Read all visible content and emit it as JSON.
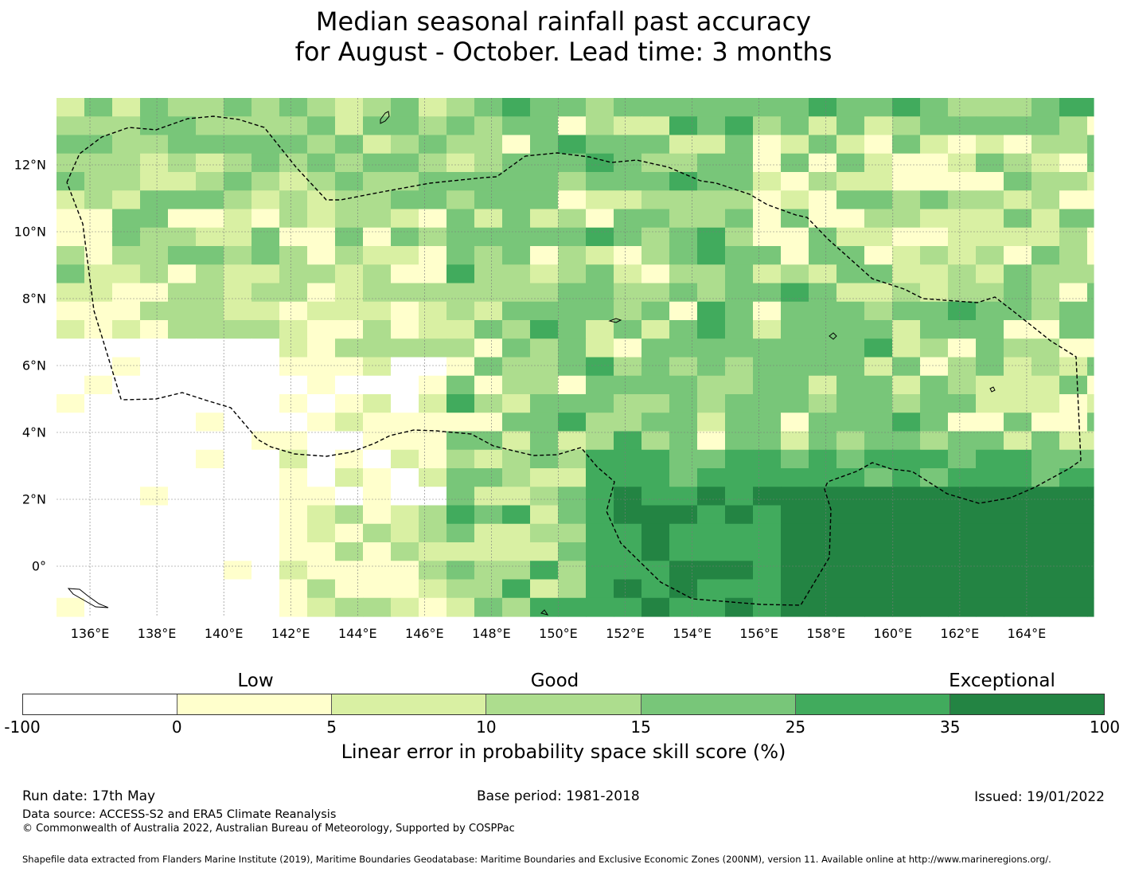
{
  "title": {
    "line1": "Median seasonal rainfall past accuracy",
    "line2": "for August - October. Lead time: 3 months"
  },
  "map": {
    "lon_labels": [
      "136°E",
      "138°E",
      "140°E",
      "142°E",
      "144°E",
      "146°E",
      "148°E",
      "150°E",
      "152°E",
      "154°E",
      "156°E",
      "158°E",
      "160°E",
      "162°E",
      "164°E"
    ],
    "lat_labels": [
      "12°N",
      "10°N",
      "8°N",
      "6°N",
      "4°N",
      "2°N",
      "0°"
    ],
    "lon_range": [
      135.0,
      166.0
    ],
    "lat_range": [
      -1.5,
      14.0
    ],
    "grid": true,
    "boundary_line": "dashed"
  },
  "legend": {
    "categories": [
      {
        "label": "Low"
      },
      {
        "label": "Good"
      },
      {
        "label": "Exceptional"
      }
    ],
    "colors": [
      "#ffffff",
      "#ffffcc",
      "#d9f0a3",
      "#addd8e",
      "#78c679",
      "#41ab5d",
      "#238443"
    ],
    "ticks": [
      "-100",
      "0",
      "5",
      "10",
      "15",
      "25",
      "35",
      "100"
    ],
    "label": "Linear error in probability space skill score (%)"
  },
  "footer": {
    "run_date": "Run date: 17th May",
    "base_period": "Base period: 1981-2018",
    "issued": "Issued: 19/01/2022",
    "data_source": "Data source: ACCESS-S2 and ERA5 Climate Reanalysis",
    "copyright": "© Commonwealth of Australia 2022, Australian Bureau of Meteorology, Supported by COSPPac",
    "shapefile": "Shapefile data extracted from Flanders Marine Institute (2019), Maritime Boundaries Geodatabase: Maritime Boundaries and Exclusive Economic Zones (200NM), version 11. Available online at http://www.marineregions.org/."
  }
}
